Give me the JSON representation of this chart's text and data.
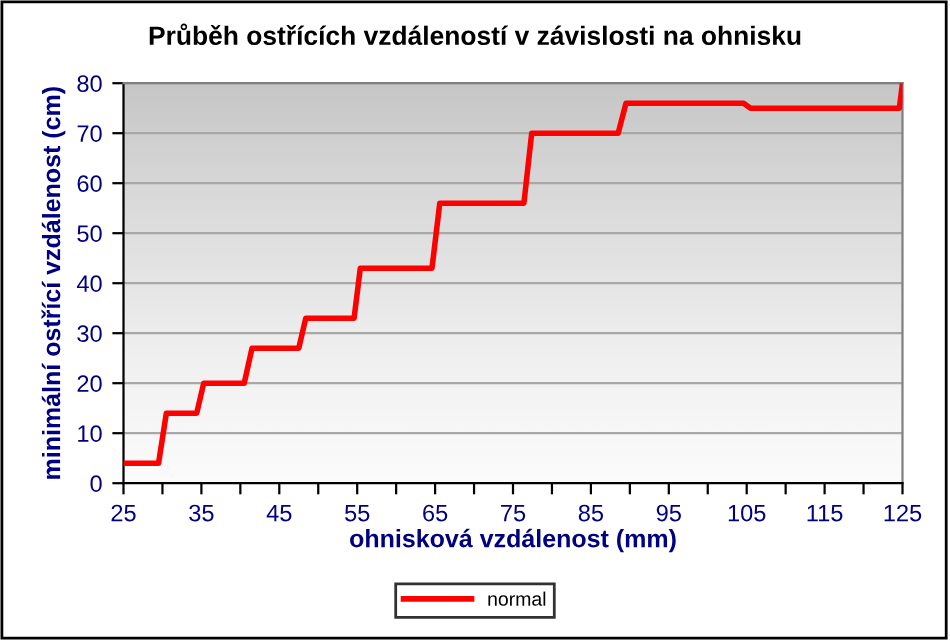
{
  "chart_data": {
    "type": "line",
    "title": "Průběh ostřících vzdáleností v závislosti na ohnisku",
    "xlabel": "ohnisková vzdálenost (mm)",
    "ylabel": "minimální ostřící vzdálenost (cm)",
    "series": [
      {
        "name": "normal",
        "color": "#ff0000",
        "x": [
          25,
          29.5,
          30.5,
          34.4,
          35.3,
          40.5,
          41.5,
          47.5,
          48.4,
          54.6,
          55.4,
          64.6,
          65.6,
          76.4,
          77.4,
          88.5,
          89.5,
          104.6,
          105.5,
          124.6,
          125
        ],
        "values": [
          4,
          4,
          14,
          14,
          20,
          20,
          27,
          27,
          33,
          33,
          43,
          43,
          56,
          56,
          70,
          70,
          76,
          76,
          75,
          75,
          80
        ]
      }
    ],
    "xlim": [
      25,
      125
    ],
    "ylim": [
      0,
      80
    ],
    "xticks": [
      25,
      {
        "value": 30,
        "label": null
      },
      35,
      {
        "value": 40,
        "label": null
      },
      45,
      {
        "value": 50,
        "label": null
      },
      55,
      {
        "value": 60,
        "label": null
      },
      65,
      {
        "value": 70,
        "label": null
      },
      75,
      {
        "value": 80,
        "label": null
      },
      85,
      {
        "value": 90,
        "label": null
      },
      95,
      {
        "value": 100,
        "label": null
      },
      105,
      {
        "value": 110,
        "label": null
      },
      115,
      {
        "value": 120,
        "label": null
      },
      125
    ],
    "yticks": [
      0,
      10,
      20,
      30,
      40,
      50,
      60,
      70,
      80
    ],
    "grid": "y",
    "legend": "bottom",
    "marker": "none",
    "line_style": "solid"
  }
}
